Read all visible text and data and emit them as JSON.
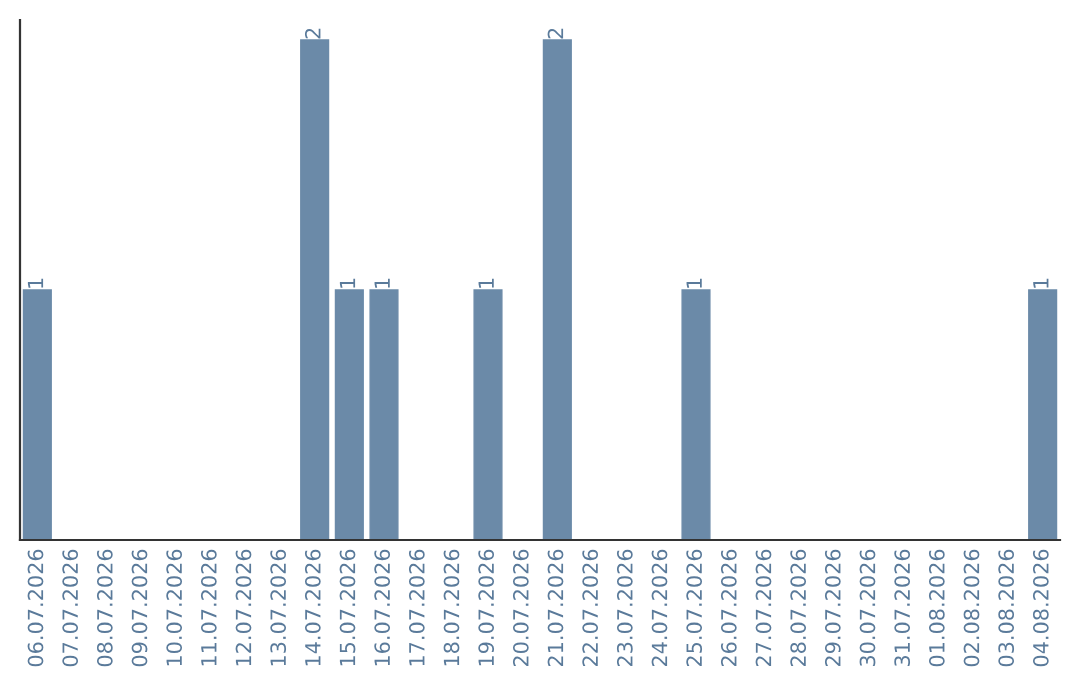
{
  "chart_data": {
    "type": "bar",
    "categories": [
      "06.07.2026",
      "07.07.2026",
      "08.07.2026",
      "09.07.2026",
      "10.07.2026",
      "11.07.2026",
      "12.07.2026",
      "13.07.2026",
      "14.07.2026",
      "15.07.2026",
      "16.07.2026",
      "17.07.2026",
      "18.07.2026",
      "19.07.2026",
      "20.07.2026",
      "21.07.2026",
      "22.07.2026",
      "23.07.2026",
      "24.07.2026",
      "25.07.2026",
      "26.07.2026",
      "27.07.2026",
      "28.07.2026",
      "29.07.2026",
      "30.07.2026",
      "31.07.2026",
      "01.08.2026",
      "02.08.2026",
      "03.08.2026",
      "04.08.2026"
    ],
    "values": [
      1,
      0,
      0,
      0,
      0,
      0,
      0,
      0,
      2,
      1,
      1,
      0,
      0,
      1,
      0,
      2,
      0,
      0,
      0,
      1,
      0,
      0,
      0,
      0,
      0,
      0,
      0,
      0,
      0,
      1
    ],
    "value_labels": [
      "1",
      null,
      null,
      null,
      null,
      null,
      null,
      null,
      "2",
      "1",
      "1",
      null,
      null,
      "1",
      null,
      "2",
      null,
      null,
      null,
      "1",
      null,
      null,
      null,
      null,
      null,
      null,
      null,
      null,
      null,
      "1"
    ],
    "color": "#6b8aa8",
    "grid": false,
    "legend": false
  }
}
